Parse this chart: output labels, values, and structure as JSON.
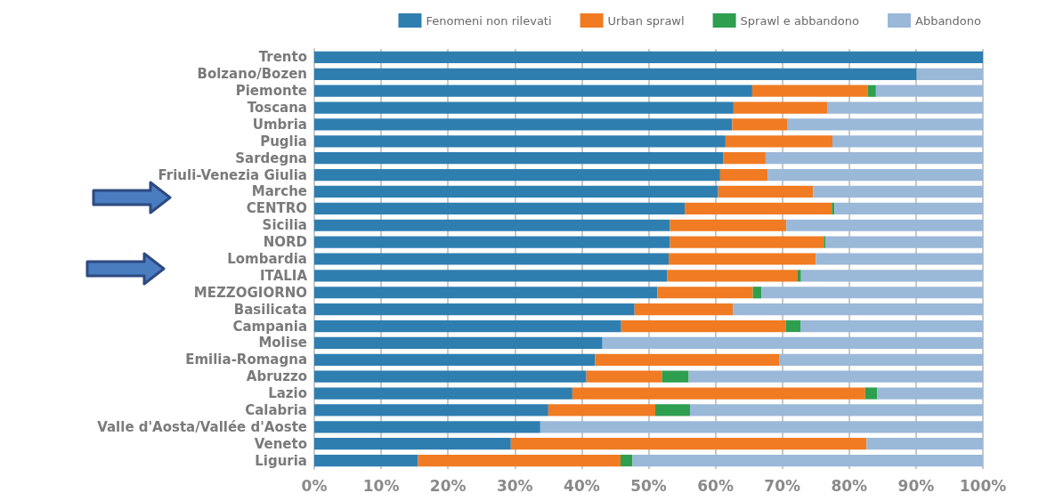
{
  "chart_data": {
    "type": "bar",
    "orientation": "horizontal",
    "stacked": true,
    "categories": [
      "Trento",
      "Bolzano/Bozen",
      "Piemonte",
      "Toscana",
      "Umbria",
      "Puglia",
      "Sardegna",
      "Friuli-Venezia Giulia",
      "Marche",
      "CENTRO",
      "Sicilia",
      "NORD",
      "Lombardia",
      "ITALIA",
      "MEZZOGIORNO",
      "Basilicata",
      "Campania",
      "Molise",
      "Emilia-Romagna",
      "Abruzzo",
      "Lazio",
      "Calabria",
      "Valle d'Aosta/Vallée d'Aoste",
      "Veneto",
      "Liguria"
    ],
    "series": [
      {
        "name": "Fenomeni non rilevati",
        "color": "#2e7eb0",
        "values": [
          100,
          90.1,
          65.5,
          62.7,
          62.5,
          61.5,
          61.2,
          60.7,
          60.4,
          55.4,
          53.2,
          53.2,
          53.0,
          52.8,
          51.3,
          47.9,
          45.9,
          43.1,
          42.0,
          40.7,
          38.6,
          35.0,
          33.8,
          29.4,
          15.5
        ]
      },
      {
        "name": "Urban sprawl",
        "color": "#f07b22",
        "values": [
          0,
          0,
          17.3,
          14.0,
          8.3,
          16.0,
          6.3,
          7.1,
          14.2,
          22.0,
          17.4,
          23.0,
          22.0,
          19.5,
          14.3,
          14.7,
          24.6,
          0,
          27.6,
          11.3,
          43.8,
          16.0,
          0,
          53.2,
          30.3
        ]
      },
      {
        "name": "Sprawl e abbandono",
        "color": "#2e9e4f",
        "values": [
          0,
          0,
          1.2,
          0,
          0,
          0,
          0,
          0,
          0,
          0.4,
          0,
          0.3,
          0,
          0.5,
          1.3,
          0,
          2.2,
          0,
          0,
          4.0,
          1.8,
          5.2,
          0,
          0,
          1.8
        ]
      },
      {
        "name": "Abbandono",
        "color": "#9ab8d8",
        "values": [
          0,
          9.9,
          16.0,
          23.3,
          29.2,
          22.5,
          32.5,
          32.2,
          25.4,
          22.2,
          29.4,
          23.5,
          25.0,
          27.2,
          33.1,
          37.4,
          27.3,
          56.9,
          30.4,
          44.0,
          15.8,
          43.8,
          66.2,
          17.4,
          52.4
        ]
      }
    ],
    "xlim": [
      0,
      100
    ],
    "xticks": [
      {
        "value": 0,
        "label": "0%"
      },
      {
        "value": 10,
        "label": "10%"
      },
      {
        "value": 20,
        "label": "20%"
      },
      {
        "value": 30,
        "label": "30%"
      },
      {
        "value": 40,
        "label": "40%"
      },
      {
        "value": 50,
        "label": "50%"
      },
      {
        "value": 60,
        "label": "60%"
      },
      {
        "value": 70,
        "label": "70%"
      },
      {
        "value": 80,
        "label": "80%"
      },
      {
        "value": 90,
        "label": "90%"
      },
      {
        "value": 100,
        "label": "100%"
      }
    ],
    "grid": "x",
    "legend": "top right"
  }
}
